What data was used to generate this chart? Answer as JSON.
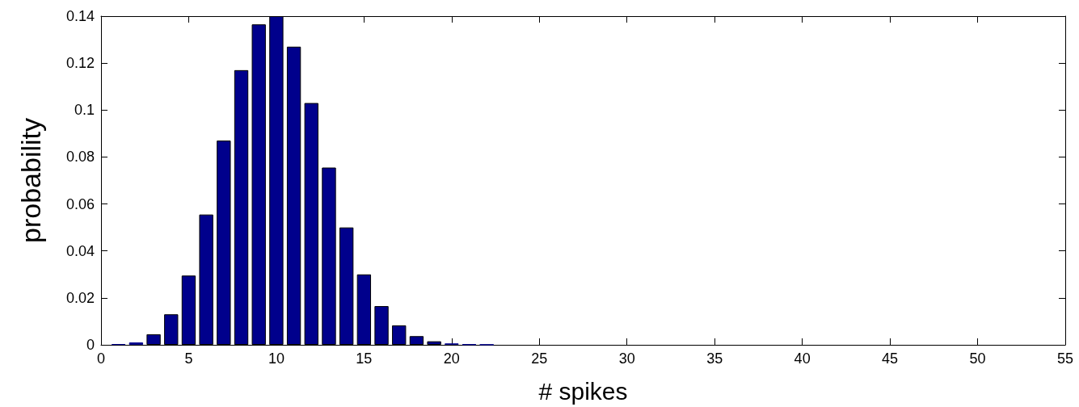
{
  "chart_data": {
    "type": "bar",
    "xlabel": "# spikes",
    "ylabel": "probability",
    "x": [
      1,
      2,
      3,
      4,
      5,
      6,
      7,
      8,
      9,
      10,
      11,
      12,
      13,
      14,
      15,
      16,
      17,
      18,
      19,
      20,
      21,
      22
    ],
    "values": [
      0.0003,
      0.001,
      0.0045,
      0.013,
      0.0295,
      0.0555,
      0.087,
      0.117,
      0.1365,
      0.14,
      0.127,
      0.103,
      0.0755,
      0.05,
      0.03,
      0.0165,
      0.0083,
      0.0037,
      0.0015,
      0.0006,
      0.0002,
      0.0001
    ],
    "color": "#00008c",
    "xlim": [
      0,
      55
    ],
    "xticks": [
      0,
      5,
      10,
      15,
      20,
      25,
      30,
      35,
      40,
      45,
      50,
      55
    ],
    "ylim": [
      0,
      0.14
    ],
    "yticks": [
      0,
      0.02,
      0.04,
      0.06,
      0.08,
      0.1,
      0.12,
      0.14
    ],
    "grid": false
  }
}
